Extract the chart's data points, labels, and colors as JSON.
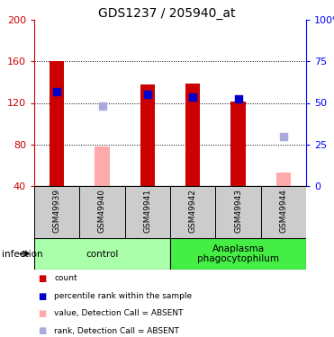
{
  "title": "GDS1237 / 205940_at",
  "samples": [
    "GSM49939",
    "GSM49940",
    "GSM49941",
    "GSM49942",
    "GSM49943",
    "GSM49944"
  ],
  "red_bars": [
    160.5,
    null,
    138.0,
    138.5,
    121.0,
    null
  ],
  "pink_bars": [
    null,
    78.0,
    null,
    null,
    null,
    53.0
  ],
  "blue_squares": [
    131.0,
    null,
    128.0,
    126.0,
    124.0,
    null
  ],
  "light_blue_squares": [
    null,
    117.0,
    null,
    null,
    null,
    88.0
  ],
  "ylim_left": [
    40,
    200
  ],
  "ylim_right": [
    0,
    100
  ],
  "yticks_left": [
    40,
    80,
    120,
    160,
    200
  ],
  "yticks_right": [
    0,
    25,
    50,
    75,
    100
  ],
  "ytick_labels_right": [
    "0",
    "25",
    "50",
    "75",
    "100%"
  ],
  "groups": [
    {
      "label": "control",
      "start": 0,
      "end": 3,
      "color": "#aaffaa"
    },
    {
      "label": "Anaplasma\nphagocytophilum",
      "start": 3,
      "end": 6,
      "color": "#44ee44"
    }
  ],
  "group_row_color": "#cccccc",
  "infection_label": "infection",
  "red_color": "#cc0000",
  "pink_color": "#ffaaaa",
  "blue_color": "#0000cc",
  "light_blue_color": "#aaaadd",
  "legend_items": [
    {
      "label": "count",
      "color": "#cc0000"
    },
    {
      "label": "percentile rank within the sample",
      "color": "#0000cc"
    },
    {
      "label": "value, Detection Call = ABSENT",
      "color": "#ffaaaa"
    },
    {
      "label": "rank, Detection Call = ABSENT",
      "color": "#aaaadd"
    }
  ],
  "bar_width": 0.32,
  "square_size": 40
}
